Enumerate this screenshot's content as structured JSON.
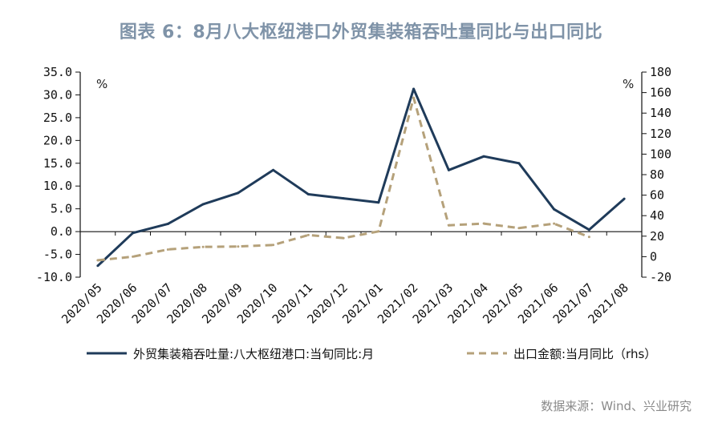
{
  "title": "图表 6：8月八大枢纽港口外贸集装箱吞吐量同比与出口同比",
  "source": "数据来源：Wind、兴业研究",
  "chart_data": {
    "type": "line",
    "categories": [
      "2020/05",
      "2020/06",
      "2020/07",
      "2020/08",
      "2020/09",
      "2020/10",
      "2020/11",
      "2020/12",
      "2021/01",
      "2021/02",
      "2021/03",
      "2021/04",
      "2021/05",
      "2021/06",
      "2021/07",
      "2021/08"
    ],
    "y_left": {
      "unit": "%",
      "range": [
        -10,
        35
      ],
      "ticks": [
        "-10.0",
        "-5.0",
        "0.0",
        "5.0",
        "10.0",
        "15.0",
        "20.0",
        "25.0",
        "30.0",
        "35.0"
      ]
    },
    "y_right": {
      "unit": "%",
      "range": [
        -20,
        180
      ],
      "ticks": [
        "-20",
        "0",
        "20",
        "40",
        "60",
        "80",
        "100",
        "120",
        "140",
        "160",
        "180"
      ]
    },
    "grid": false,
    "legend_position": "bottom",
    "series": [
      {
        "name": "外贸集装箱吞吐量:八大枢纽港口:当旬同比:月",
        "axis": "left",
        "style": "solid",
        "color": "#1f3b5a",
        "values": [
          -7.5,
          -0.3,
          1.7,
          6.0,
          8.5,
          13.5,
          8.2,
          7.3,
          6.4,
          31.3,
          13.5,
          16.5,
          15.0,
          4.9,
          0.4,
          7.2
        ]
      },
      {
        "name": "出口金额:当月同比（rhs）",
        "axis": "right",
        "style": "dashed",
        "color": "#b5a17a",
        "values": [
          -3.5,
          0.0,
          7.0,
          9.5,
          9.9,
          11.4,
          21.1,
          18.1,
          24.7,
          154.9,
          30.6,
          32.3,
          27.9,
          32.2,
          19.3,
          null
        ]
      }
    ]
  }
}
